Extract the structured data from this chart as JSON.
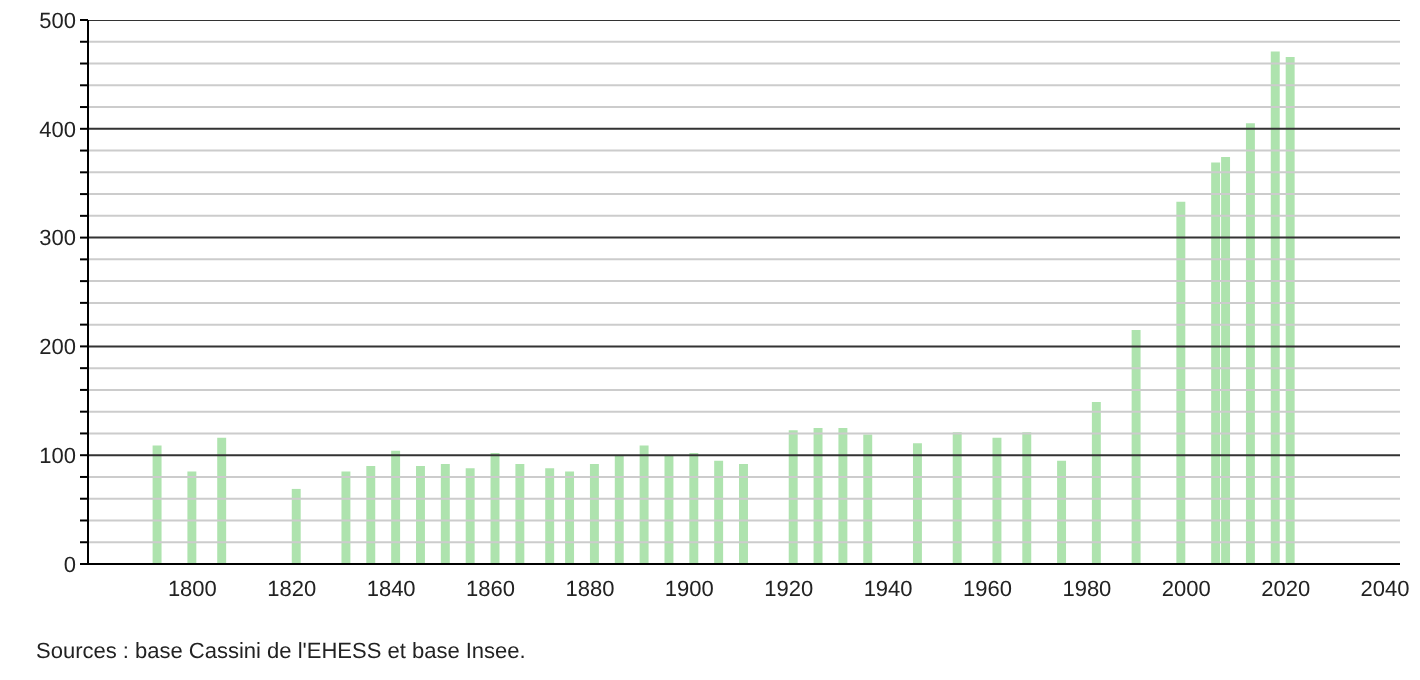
{
  "chart_data": {
    "type": "bar",
    "x": [
      1793,
      1800,
      1806,
      1821,
      1831,
      1836,
      1841,
      1846,
      1851,
      1856,
      1861,
      1866,
      1872,
      1876,
      1881,
      1886,
      1891,
      1896,
      1901,
      1906,
      1911,
      1921,
      1926,
      1931,
      1936,
      1946,
      1954,
      1962,
      1968,
      1975,
      1982,
      1990,
      1999,
      2006,
      2008,
      2013,
      2018,
      2021
    ],
    "values": [
      109,
      85,
      116,
      69,
      85,
      90,
      104,
      90,
      92,
      88,
      102,
      92,
      88,
      85,
      92,
      100,
      109,
      100,
      102,
      95,
      92,
      123,
      125,
      125,
      119,
      111,
      121,
      116,
      121,
      95,
      149,
      215,
      333,
      369,
      374,
      405,
      471,
      466
    ],
    "color": "#aee3ae",
    "xlim": [
      1779,
      2043
    ],
    "xticks": [
      1800,
      1820,
      1840,
      1860,
      1880,
      1900,
      1920,
      1940,
      1960,
      1980,
      2000,
      2020,
      2040
    ],
    "ylim": [
      0,
      500
    ],
    "yticks": [
      0,
      {
        "value": 20,
        "label": null
      },
      {
        "value": 40,
        "label": null
      },
      {
        "value": 60,
        "label": null
      },
      {
        "value": 80,
        "label": null
      },
      100,
      {
        "value": 120,
        "label": null
      },
      {
        "value": 140,
        "label": null
      },
      {
        "value": 160,
        "label": null
      },
      {
        "value": 180,
        "label": null
      },
      200,
      {
        "value": 220,
        "label": null
      },
      {
        "value": 240,
        "label": null
      },
      {
        "value": 260,
        "label": null
      },
      {
        "value": 280,
        "label": null
      },
      300,
      {
        "value": 320,
        "label": null
      },
      {
        "value": 340,
        "label": null
      },
      {
        "value": 360,
        "label": null
      },
      {
        "value": 380,
        "label": null
      },
      400,
      {
        "value": 420,
        "label": null
      },
      {
        "value": 440,
        "label": null
      },
      {
        "value": 460,
        "label": null
      },
      {
        "value": 480,
        "label": null
      },
      500
    ],
    "grid": "y",
    "annotations": [
      "Sources : base Cassini de l'EHESS et base Insee."
    ]
  }
}
